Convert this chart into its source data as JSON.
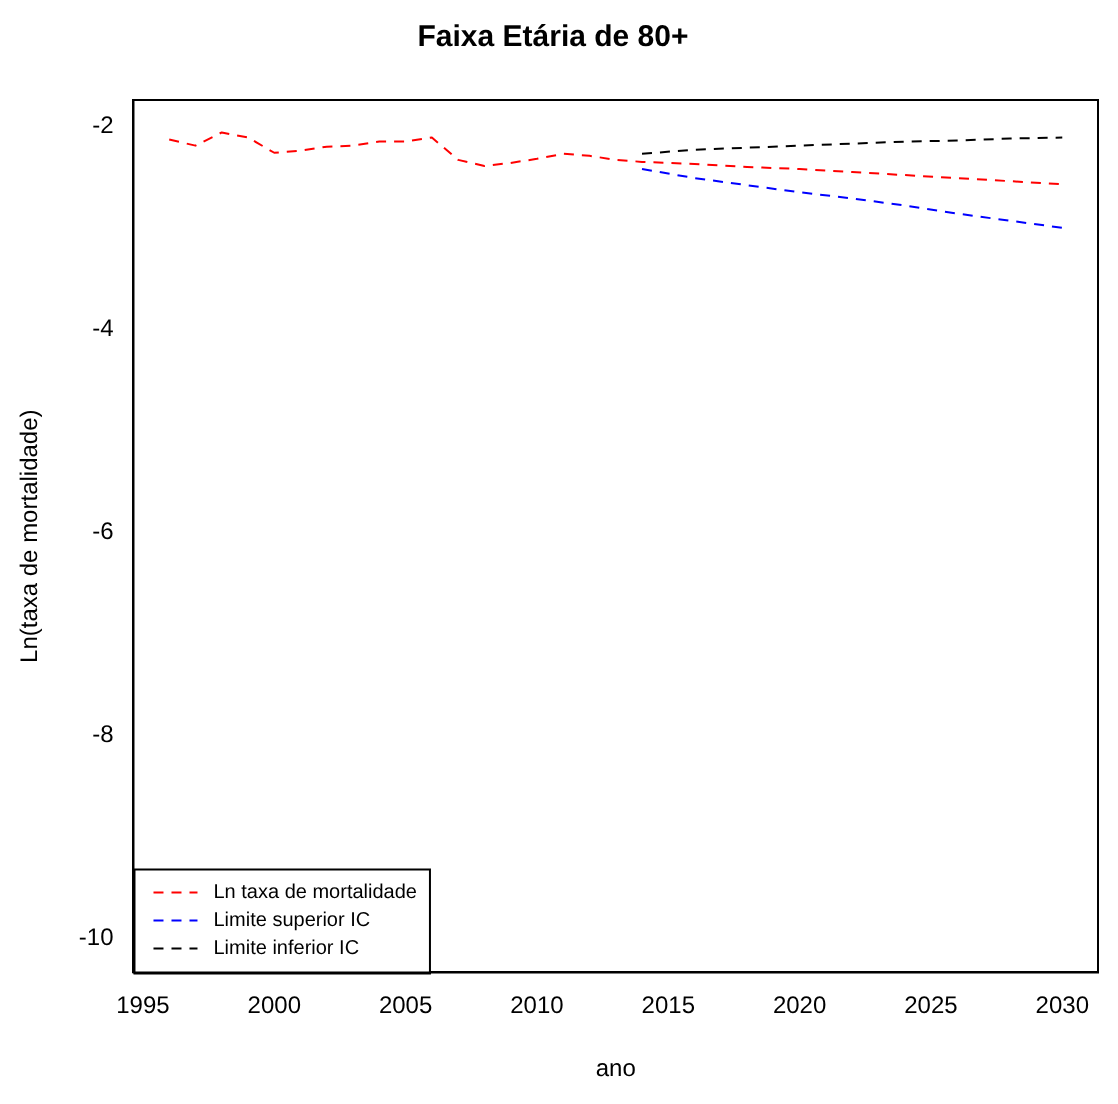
{
  "chart_data": {
    "type": "line",
    "title": "Faixa Etária de 80+",
    "xlabel": "ano",
    "ylabel": "Ln(taxa de mortalidade)",
    "xlim": [
      1994.64,
      2031.36
    ],
    "xticks": [
      1995,
      2000,
      2005,
      2010,
      2015,
      2020,
      2025,
      2030
    ],
    "ylim": [
      -10.34,
      -1.74
    ],
    "yticks": [
      -2,
      -4,
      -6,
      -8,
      -10
    ],
    "grid": false,
    "legend": "bottom left",
    "line_style": "dashed",
    "marker": "none",
    "series": [
      {
        "name": "Ln taxa de mortalidade",
        "color": "#ff0000",
        "x": [
          1996,
          1997,
          1998,
          1999,
          2000,
          2001,
          2002,
          2003,
          2004,
          2005,
          2006,
          2007,
          2008,
          2009,
          2010,
          2011,
          2012,
          2013,
          2014,
          2016,
          2018,
          2020,
          2022,
          2024,
          2026,
          2028,
          2030
        ],
        "values": [
          -2.13,
          -2.19,
          -2.06,
          -2.11,
          -2.26,
          -2.24,
          -2.2,
          -2.19,
          -2.15,
          -2.15,
          -2.11,
          -2.33,
          -2.39,
          -2.36,
          -2.32,
          -2.27,
          -2.29,
          -2.33,
          -2.35,
          -2.37,
          -2.4,
          -2.42,
          -2.45,
          -2.48,
          -2.51,
          -2.54,
          -2.57
        ]
      },
      {
        "name": "Limite superior IC",
        "color": "#0000ff",
        "x": [
          2014,
          2016,
          2018,
          2020,
          2022,
          2024,
          2026,
          2028,
          2030
        ],
        "values": [
          -2.42,
          -2.51,
          -2.58,
          -2.65,
          -2.71,
          -2.78,
          -2.86,
          -2.93,
          -3.0
        ]
      },
      {
        "name": "Limite inferior IC",
        "color": "#000000",
        "x": [
          2014,
          2016,
          2018,
          2020,
          2022,
          2024,
          2026,
          2028,
          2030
        ],
        "values": [
          -2.27,
          -2.23,
          -2.21,
          -2.19,
          -2.17,
          -2.15,
          -2.14,
          -2.12,
          -2.11
        ]
      }
    ]
  }
}
